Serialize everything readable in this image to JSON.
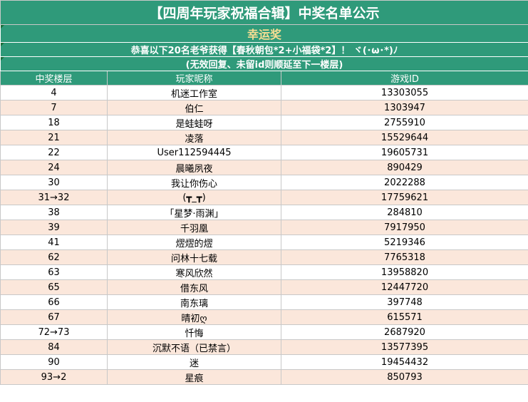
{
  "title": "【四周年玩家祝福合辑】中奖名单公示",
  "prize": "幸运奖",
  "notice": "恭喜以下20名老爷获得【春秋朝包*2+小福袋*2】！ ヾ(･ω･*)ﾉ",
  "subnotice": "(无效回复、未留id则顺延至下一楼层)",
  "headers": {
    "floor": "中奖楼层",
    "nickname": "玩家昵称",
    "game_id": "游戏ID"
  },
  "rows": [
    {
      "floor": "4",
      "nickname": "机迷工作室",
      "game_id": "13303055"
    },
    {
      "floor": "7",
      "nickname": "伯仁",
      "game_id": "1303947"
    },
    {
      "floor": "18",
      "nickname": "是蛙蛙呀",
      "game_id": "2755910"
    },
    {
      "floor": "21",
      "nickname": "凌落",
      "game_id": "15529644"
    },
    {
      "floor": "22",
      "nickname": "User112594445",
      "game_id": "19605731"
    },
    {
      "floor": "24",
      "nickname": "晨曦夙夜",
      "game_id": "890429"
    },
    {
      "floor": "30",
      "nickname": "我让你伤心",
      "game_id": "2022288"
    },
    {
      "floor": "31→32",
      "nickname": "(┳_┳)",
      "game_id": "17759621"
    },
    {
      "floor": "38",
      "nickname": "「星梦·雨渊」",
      "game_id": "284810"
    },
    {
      "floor": "39",
      "nickname": "千羽凰",
      "game_id": "7917950"
    },
    {
      "floor": "41",
      "nickname": "熤熤的熤",
      "game_id": "5219346"
    },
    {
      "floor": "62",
      "nickname": "问林十七载",
      "game_id": "7765318"
    },
    {
      "floor": "63",
      "nickname": "寒风欣然",
      "game_id": "13958820"
    },
    {
      "floor": "65",
      "nickname": "借东风",
      "game_id": "12447720"
    },
    {
      "floor": "66",
      "nickname": "南东璃",
      "game_id": "397748"
    },
    {
      "floor": "67",
      "nickname": "晴初ღ",
      "game_id": "615571"
    },
    {
      "floor": "72→73",
      "nickname": "忏悔",
      "game_id": "2687920"
    },
    {
      "floor": "84",
      "nickname": "沉默不语（已禁言）",
      "game_id": "13577395"
    },
    {
      "floor": "90",
      "nickname": "迷",
      "game_id": "19454432"
    },
    {
      "floor": "93→2",
      "nickname": "星痕",
      "game_id": "850793"
    }
  ],
  "colors": {
    "header_green": "#2f9a7a",
    "prize_gold": "#f8de93",
    "stripe_peach": "#fbe7db"
  }
}
